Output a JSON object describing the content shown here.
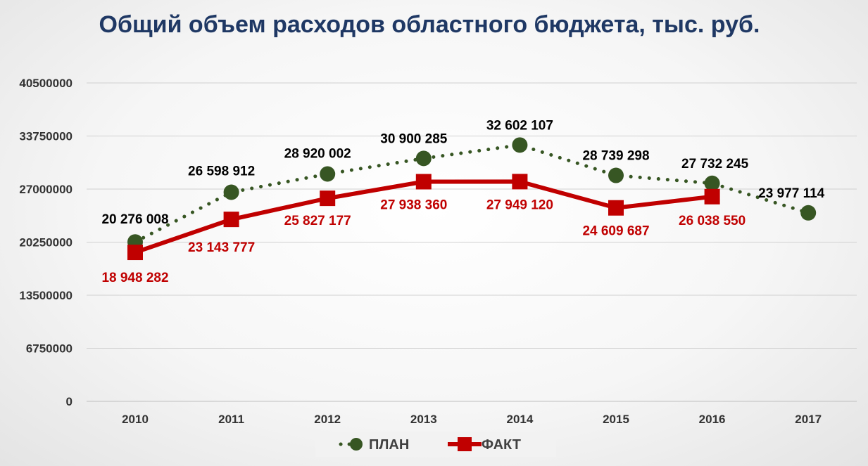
{
  "chart_data": {
    "type": "line",
    "title": "Общий объем расходов областного бюджета, тыс. руб.",
    "categories": [
      "2010",
      "2011",
      "2012",
      "2013",
      "2014",
      "2015",
      "2016",
      "2017"
    ],
    "ylim": [
      0,
      40500000
    ],
    "yticks": [
      0,
      6750000,
      13500000,
      20250000,
      27000000,
      33750000,
      40500000
    ],
    "ytick_labels": [
      "0",
      "6750000",
      "13500000",
      "20250000",
      "27000000",
      "33750000",
      "40500000"
    ],
    "grid": true,
    "legend_position": "bottom",
    "series": [
      {
        "name": "ПЛАН",
        "color": "#375623",
        "style": "dotted",
        "marker": "circle",
        "values": [
          20276008,
          26598912,
          28920002,
          30900285,
          32602107,
          28739298,
          27732245,
          23977114
        ],
        "labels": [
          "20 276 008",
          "26 598 912",
          "28 920 002",
          "30 900 285",
          "32 602 107",
          "28 739 298",
          "27 732 245",
          "23 977 114"
        ]
      },
      {
        "name": "ФАКТ",
        "color": "#c00000",
        "style": "solid",
        "marker": "square",
        "values": [
          18948282,
          23143777,
          25827177,
          27938360,
          27949120,
          24609687,
          26038550,
          null
        ],
        "labels": [
          "18 948 282",
          "23 143 777",
          "25 827 177",
          "27 938 360",
          "27 949 120",
          "24 609 687",
          "26 038 550",
          ""
        ]
      }
    ]
  }
}
